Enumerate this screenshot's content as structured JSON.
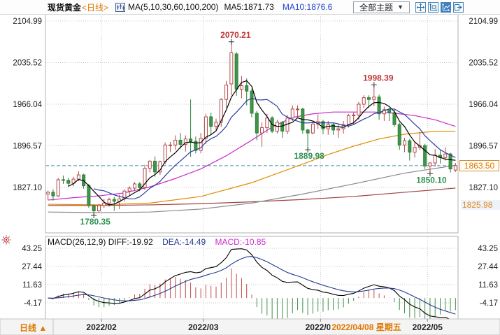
{
  "toolbar": {
    "symbol": "现货黄金",
    "period_tag": "<日线>",
    "ma_settings": "MA(5,10,30,60,100,200)",
    "ma5_label": "MA5:1871.73",
    "ma10_label": "MA10:1876.6",
    "theme_dropdown": "全部主题",
    "chevron": "▼",
    "icon_names": [
      "kline-settings-icon",
      "crosshair-move-icon",
      "axes-frame-icon",
      "chart-style-icon",
      "exit-icon"
    ]
  },
  "main_chart": {
    "y_labels": [
      "2104.99",
      "2035.52",
      "1966.04",
      "1896.57",
      "1827.10"
    ],
    "current_price": "1863.50",
    "ma200_axis_label": "1825.98",
    "dashed_line_price": 1863.5
  },
  "macd": {
    "title": "MACD(26,12,9)",
    "diff_label": "DIFF:-19.92",
    "dea_label": "DEA:-14.49",
    "macd_label": "MACD:-10.85",
    "y_labels": [
      "43.25",
      "27.44",
      "11.63",
      "-4.17"
    ]
  },
  "x_axis": {
    "period_button": "日线 ▲",
    "labels": [
      {
        "text": "2022/02",
        "index": 11
      },
      {
        "text": "2022/03",
        "index": 31
      },
      {
        "text": "2022/04",
        "index": 54
      },
      {
        "text": "2022/05",
        "index": 75
      }
    ],
    "cursor_label": "2022/04/08 星期五"
  },
  "colors": {
    "up": "#b5494a",
    "up_fill": "#ffffff",
    "down": "#3f9648",
    "down_border": "#2f7e38",
    "ma5": "#000000",
    "ma10": "#2a3f9e",
    "ma30": "#c82cc8",
    "ma60": "#e08b00",
    "ma100": "#8a8a8a",
    "ma200": "#a04343",
    "diff": "#000000",
    "dea": "#223a8f",
    "hist_pos": "#c24a4a",
    "hist_neg": "#3f8f47",
    "dashed_line": "#4d8fac",
    "grid": "#c9c9c9",
    "border": "#b0b0b0",
    "annotation_high": "#c03434",
    "annotation_low": "#2f9150",
    "accent_orange": "#e07800",
    "axis_text": "#222222",
    "cursor_date": "#e07800",
    "bar_bg": "#f4f4f4"
  },
  "chart_data": {
    "type": "candlestick",
    "title": "现货黄金 日线 (Spot Gold Daily K-line with MA overlays and MACD)",
    "y_ticks": [
      2104.99,
      2035.52,
      1966.04,
      1896.57,
      1827.1
    ],
    "ylim": [
      1752,
      2113
    ],
    "annotations": [
      {
        "text": "2070.21",
        "index": 36,
        "price": 2070.21,
        "type": "high"
      },
      {
        "text": "1998.39",
        "index": 64,
        "price": 1998.39,
        "type": "high"
      },
      {
        "text": "1889.98",
        "index": 51,
        "price": 1889.98,
        "type": "low"
      },
      {
        "text": "1780.35",
        "index": 9,
        "price": 1780.35,
        "type": "low"
      },
      {
        "text": "1850.10",
        "index": 75,
        "price": 1850.1,
        "type": "low"
      }
    ],
    "ohlc": [
      [
        1816,
        1822,
        1806,
        1819
      ],
      [
        1819,
        1824,
        1805,
        1813
      ],
      [
        1813,
        1843,
        1811,
        1840
      ],
      [
        1840,
        1847,
        1833,
        1839
      ],
      [
        1839,
        1843,
        1828,
        1834
      ],
      [
        1834,
        1845,
        1829,
        1841
      ],
      [
        1841,
        1854,
        1838,
        1848
      ],
      [
        1848,
        1850,
        1825,
        1830
      ],
      [
        1830,
        1833,
        1793,
        1797
      ],
      [
        1796,
        1799,
        1780.35,
        1788
      ],
      [
        1788,
        1800,
        1785,
        1797
      ],
      [
        1797,
        1808,
        1793,
        1801
      ],
      [
        1801,
        1810,
        1795,
        1807
      ],
      [
        1807,
        1811,
        1788,
        1804
      ],
      [
        1804,
        1815,
        1791,
        1808
      ],
      [
        1808,
        1824,
        1804,
        1821
      ],
      [
        1821,
        1829,
        1814,
        1826
      ],
      [
        1826,
        1836,
        1821,
        1833
      ],
      [
        1833,
        1836,
        1821,
        1827
      ],
      [
        1827,
        1865,
        1823,
        1859
      ],
      [
        1859,
        1873,
        1852,
        1871
      ],
      [
        1871,
        1879,
        1845,
        1853
      ],
      [
        1853,
        1872,
        1848,
        1870
      ],
      [
        1870,
        1902,
        1866,
        1898
      ],
      [
        1898,
        1903,
        1886,
        1898
      ],
      [
        1898,
        1914,
        1890,
        1906
      ],
      [
        1906,
        1918,
        1892,
        1899
      ],
      [
        1899,
        1914,
        1887,
        1908
      ],
      [
        1908,
        1974,
        1878,
        1904
      ],
      [
        1904,
        1912,
        1884,
        1889
      ],
      [
        1889,
        1918,
        1884,
        1909
      ],
      [
        1909,
        1950,
        1900,
        1945
      ],
      [
        1945,
        1952,
        1916,
        1929
      ],
      [
        1929,
        1942,
        1921,
        1936
      ],
      [
        1936,
        1976,
        1928,
        1974
      ],
      [
        1974,
        2005,
        1960,
        1998
      ],
      [
        2000,
        2070.21,
        1981,
        2052
      ],
      [
        2050,
        2053,
        1980,
        1991
      ],
      [
        1991,
        2013,
        1976,
        1997
      ],
      [
        1997,
        2009,
        1964,
        1988
      ],
      [
        1988,
        1992,
        1944,
        1951
      ],
      [
        1951,
        1955,
        1906,
        1918
      ],
      [
        1918,
        1936,
        1895,
        1927
      ],
      [
        1927,
        1950,
        1918,
        1943
      ],
      [
        1943,
        1946,
        1918,
        1921
      ],
      [
        1921,
        1940,
        1917,
        1936
      ],
      [
        1936,
        1938,
        1910,
        1921
      ],
      [
        1921,
        1948,
        1916,
        1943
      ],
      [
        1943,
        1964,
        1938,
        1958
      ],
      [
        1958,
        1964,
        1944,
        1958
      ],
      [
        1958,
        1960,
        1917,
        1923
      ],
      [
        1923,
        1925,
        1889.98,
        1918
      ],
      [
        1918,
        1938,
        1916,
        1933
      ],
      [
        1933,
        1949,
        1925,
        1937
      ],
      [
        1937,
        1940,
        1916,
        1925
      ],
      [
        1925,
        1938,
        1915,
        1932
      ],
      [
        1932,
        1935,
        1915,
        1923
      ],
      [
        1923,
        1932,
        1910,
        1925
      ],
      [
        1925,
        1938,
        1917,
        1932
      ],
      [
        1932,
        1950,
        1927,
        1947
      ],
      [
        1947,
        1952,
        1932,
        1948
      ],
      [
        1948,
        1970,
        1940,
        1966
      ],
      [
        1966,
        1981,
        1960,
        1977
      ],
      [
        1977,
        1981,
        1960,
        1974
      ],
      [
        1974,
        1998.39,
        1963,
        1978
      ],
      [
        1978,
        1982,
        1940,
        1950
      ],
      [
        1950,
        1962,
        1938,
        1957
      ],
      [
        1957,
        1960,
        1938,
        1952
      ],
      [
        1952,
        1957,
        1928,
        1932
      ],
      [
        1932,
        1935,
        1890,
        1898
      ],
      [
        1898,
        1910,
        1886,
        1905
      ],
      [
        1905,
        1908,
        1872,
        1886
      ],
      [
        1886,
        1902,
        1877,
        1894
      ],
      [
        1894,
        1920,
        1890,
        1897
      ],
      [
        1897,
        1900,
        1858,
        1863
      ],
      [
        1863,
        1869,
        1850.1,
        1868
      ],
      [
        1868,
        1891,
        1862,
        1881
      ],
      [
        1881,
        1889,
        1867,
        1877
      ],
      [
        1877,
        1894,
        1872,
        1883
      ],
      [
        1883,
        1885,
        1852,
        1858
      ],
      [
        1856,
        1868,
        1853,
        1863.5
      ]
    ],
    "overlays": {
      "ma30": [
        [
          0,
          1806
        ],
        [
          5,
          1810
        ],
        [
          10,
          1813
        ],
        [
          15,
          1818
        ],
        [
          20,
          1828
        ],
        [
          25,
          1842
        ],
        [
          30,
          1858
        ],
        [
          35,
          1880
        ],
        [
          40,
          1906
        ],
        [
          44,
          1928
        ],
        [
          48,
          1944
        ],
        [
          52,
          1950
        ],
        [
          56,
          1953
        ],
        [
          60,
          1953
        ],
        [
          64,
          1953
        ],
        [
          68,
          1951
        ],
        [
          72,
          1947
        ],
        [
          76,
          1940
        ],
        [
          80,
          1929
        ]
      ],
      "ma60": [
        [
          0,
          1799
        ],
        [
          10,
          1798
        ],
        [
          20,
          1801
        ],
        [
          30,
          1812
        ],
        [
          40,
          1835
        ],
        [
          50,
          1866
        ],
        [
          55,
          1882
        ],
        [
          60,
          1896
        ],
        [
          65,
          1908
        ],
        [
          70,
          1916
        ],
        [
          75,
          1920
        ],
        [
          80,
          1921
        ]
      ],
      "ma100": [
        [
          0,
          1786
        ],
        [
          10,
          1785
        ],
        [
          20,
          1786
        ],
        [
          30,
          1791
        ],
        [
          40,
          1801
        ],
        [
          50,
          1816
        ],
        [
          60,
          1833
        ],
        [
          70,
          1851
        ],
        [
          80,
          1864
        ]
      ],
      "ma200": [
        [
          0,
          1797
        ],
        [
          10,
          1797
        ],
        [
          20,
          1798
        ],
        [
          30,
          1800
        ],
        [
          40,
          1803
        ],
        [
          50,
          1807
        ],
        [
          60,
          1812
        ],
        [
          70,
          1819
        ],
        [
          80,
          1826
        ]
      ]
    },
    "macd_pane": {
      "type": "macd",
      "params": "26,12,9",
      "diff": -19.92,
      "dea": -14.49,
      "macd": -10.85,
      "y_ticks": [
        43.25,
        27.44,
        11.63,
        -4.17
      ],
      "note": "DIFF/DEA/histogram computed from ohlc closes"
    }
  }
}
